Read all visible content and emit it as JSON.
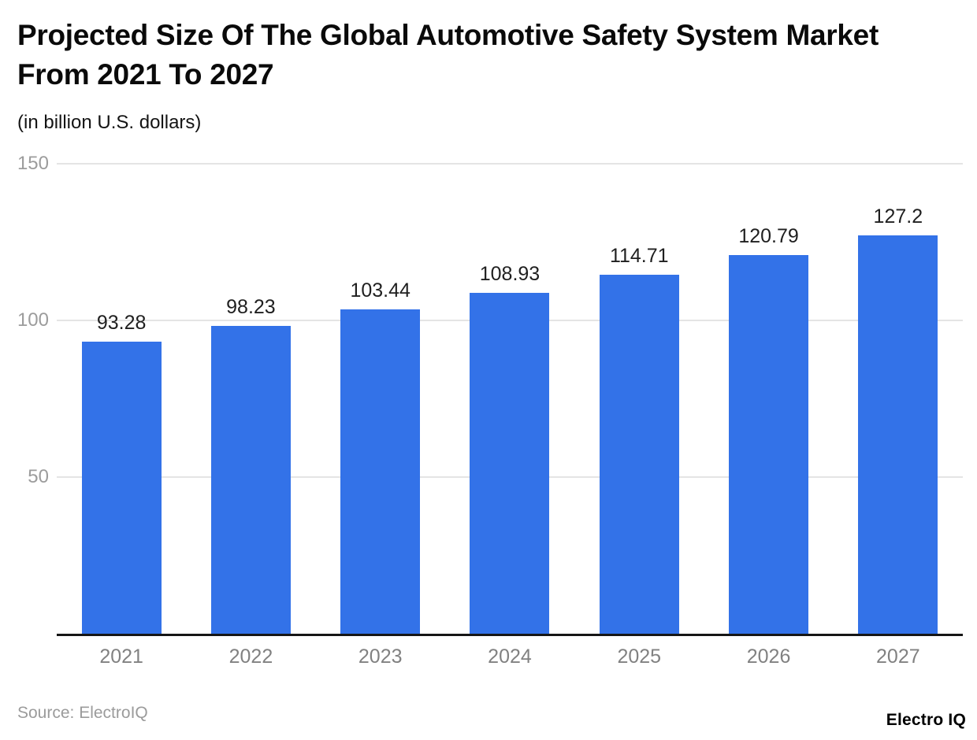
{
  "chart": {
    "title": "Projected Size Of The Global Automotive Safety System Market From 2021 To 2027",
    "subtitle": "(in billion U.S. dollars)",
    "source_text": "Source: ElectroIQ",
    "brand_text": "Electro IQ",
    "colors": {
      "bar": "#3372e8",
      "gridline": "#e4e4e4",
      "axis_line": "#161616",
      "y_tick_label": "#9c9c9c",
      "x_tick_label": "#818181",
      "value_label": "#1f1f1f"
    }
  },
  "chart_data": {
    "type": "bar",
    "title": "Projected Size Of The Global Automotive Safety System Market From 2021 To 2027",
    "subtitle": "(in billion U.S. dollars)",
    "categories": [
      "2021",
      "2022",
      "2023",
      "2024",
      "2025",
      "2026",
      "2027"
    ],
    "values": [
      93.28,
      98.23,
      103.44,
      108.93,
      114.71,
      120.79,
      127.2
    ],
    "value_labels": [
      "93.28",
      "98.23",
      "103.44",
      "108.93",
      "114.71",
      "120.79",
      "127.2"
    ],
    "xlabel": "",
    "ylabel": "",
    "ylim": [
      0,
      150
    ],
    "y_ticks": [
      "150",
      "100",
      "50"
    ],
    "grid": true,
    "legend": "none",
    "bar_color": "#3372e8"
  }
}
